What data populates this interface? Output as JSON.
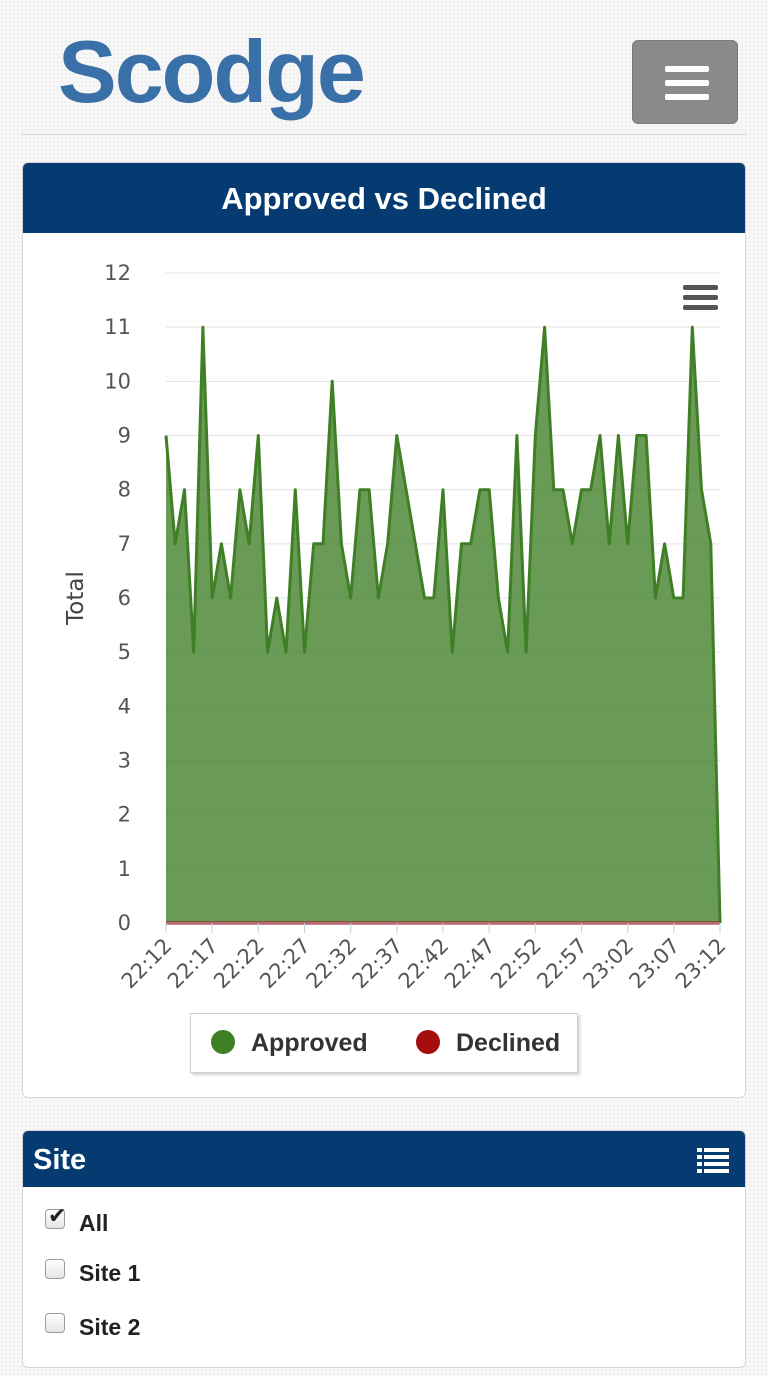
{
  "header": {
    "logo_text": "Scodge",
    "menu_icon": "hamburger-menu-icon"
  },
  "chart_panel": {
    "title": "Approved vs Declined",
    "export_icon": "hamburger-menu-icon"
  },
  "chart_data": {
    "type": "area",
    "ylabel": "Total",
    "ylim": [
      0,
      12
    ],
    "yticks": [
      "0",
      "1",
      "2",
      "3",
      "4",
      "5",
      "6",
      "7",
      "8",
      "9",
      "10",
      "11",
      "12"
    ],
    "xticks": [
      "22:12",
      "22:17",
      "22:22",
      "22:27",
      "22:32",
      "22:37",
      "22:42",
      "22:47",
      "22:52",
      "22:57",
      "23:02",
      "23:07",
      "23:12"
    ],
    "x_start_minute_label": "22:12",
    "legend_position": "bottom-center",
    "grid": true,
    "series": [
      {
        "name": "Approved",
        "color": "#3f7f26",
        "values": [
          9,
          7,
          8,
          5,
          11,
          6,
          7,
          6,
          8,
          7,
          9,
          5,
          6,
          5,
          8,
          5,
          7,
          7,
          10,
          7,
          6,
          8,
          8,
          6,
          7,
          9,
          8,
          7,
          6,
          6,
          8,
          5,
          7,
          7,
          8,
          8,
          6,
          5,
          9,
          5,
          9,
          11,
          8,
          8,
          7,
          8,
          8,
          9,
          7,
          9,
          7,
          9,
          9,
          6,
          7,
          6,
          6,
          11,
          8,
          7,
          0
        ]
      },
      {
        "name": "Declined",
        "color": "#a50d0d",
        "values": [
          0,
          0,
          0,
          0,
          0,
          0,
          0,
          0,
          0,
          0,
          0,
          0,
          0,
          0,
          0,
          0,
          0,
          0,
          0,
          0,
          0,
          0,
          0,
          0,
          0,
          0,
          0,
          0,
          0,
          0,
          0,
          0,
          0,
          0,
          0,
          0,
          0,
          0,
          0,
          0,
          0,
          0,
          0,
          0,
          0,
          0,
          0,
          0,
          0,
          0,
          0,
          0,
          0,
          0,
          0,
          0,
          0,
          0,
          0,
          0,
          0
        ]
      }
    ]
  },
  "site_panel": {
    "title": "Site",
    "list_icon": "list-icon",
    "options": [
      {
        "label": "All",
        "checked": true
      },
      {
        "label": "Site 1",
        "checked": false
      },
      {
        "label": "Site 2",
        "checked": false
      }
    ]
  }
}
